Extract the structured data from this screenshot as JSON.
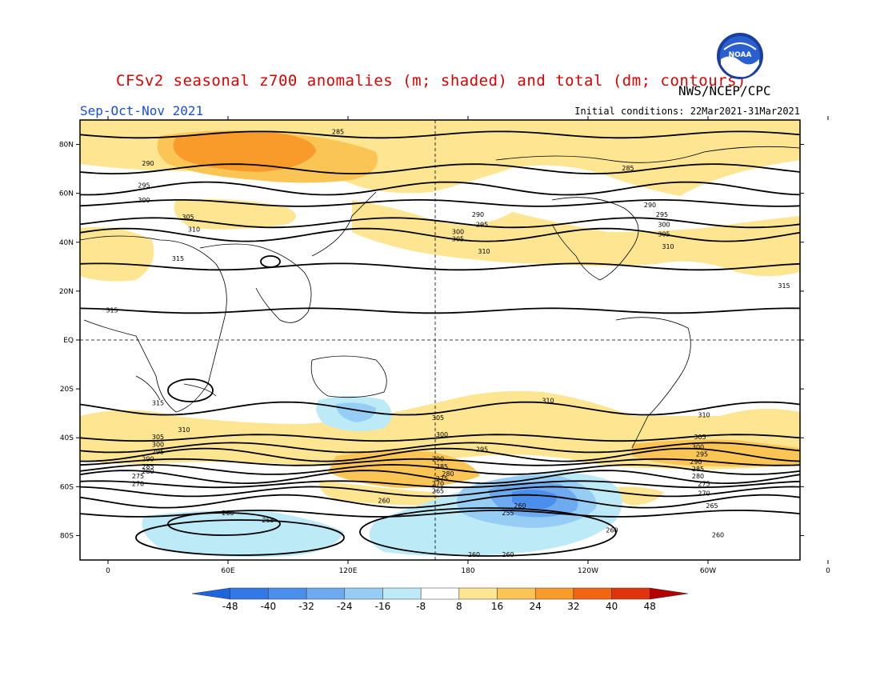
{
  "title": "CFSv2 seasonal z700 anomalies (m; shaded) and total (dm; contours)",
  "agency": "NWS/NCEP/CPC",
  "season": "Sep-Oct-Nov 2021",
  "initial_conditions": "Initial conditions: 22Mar2021-31Mar2021",
  "logo_text": "NOAA",
  "map": {
    "lat_ticks": [
      "80N",
      "60N",
      "40N",
      "20N",
      "EQ",
      "20S",
      "40S",
      "60S",
      "80S"
    ],
    "lon_ticks": [
      "0",
      "60E",
      "120E",
      "180",
      "120W",
      "60W",
      "0"
    ],
    "contours": [
      {
        "label": "285",
        "lat": 84
      },
      {
        "label": "290",
        "lat": 70
      },
      {
        "label": "295",
        "lat": 62
      },
      {
        "label": "300",
        "lat": 56
      },
      {
        "label": "305",
        "lat": 48
      },
      {
        "label": "310",
        "lat": 43
      },
      {
        "label": "315",
        "lat": 30
      },
      {
        "label": "315",
        "lat": 12
      },
      {
        "label": "310",
        "lat": -28
      },
      {
        "label": "305",
        "lat": -40
      },
      {
        "label": "300",
        "lat": -44
      },
      {
        "label": "295",
        "lat": -47
      },
      {
        "label": "290",
        "lat": -50
      },
      {
        "label": "285",
        "lat": -53
      },
      {
        "label": "280",
        "lat": -56
      },
      {
        "label": "275",
        "lat": -59
      },
      {
        "label": "270",
        "lat": -62
      },
      {
        "label": "260",
        "lat": -66
      },
      {
        "label": "255",
        "lat": -71
      }
    ],
    "contour_labels": [
      {
        "text": "285",
        "lon": 115,
        "lat": 85
      },
      {
        "text": "285",
        "lon": -100,
        "lat": 70
      },
      {
        "text": "290",
        "lon": 20,
        "lat": 72
      },
      {
        "text": "295",
        "lon": 18,
        "lat": 63
      },
      {
        "text": "300",
        "lon": 18,
        "lat": 57
      },
      {
        "text": "305",
        "lon": 40,
        "lat": 50
      },
      {
        "text": "310",
        "lon": 43,
        "lat": 45
      },
      {
        "text": "315",
        "lon": 35,
        "lat": 33
      },
      {
        "text": "315",
        "lon": 2,
        "lat": 12
      },
      {
        "text": "290",
        "lon": -175,
        "lat": 51
      },
      {
        "text": "295",
        "lon": -173,
        "lat": 47
      },
      {
        "text": "300",
        "lon": 175,
        "lat": 44
      },
      {
        "text": "305",
        "lon": 175,
        "lat": 41
      },
      {
        "text": "310",
        "lon": -172,
        "lat": 36
      },
      {
        "text": "290",
        "lon": -89,
        "lat": 55
      },
      {
        "text": "295",
        "lon": -83,
        "lat": 51
      },
      {
        "text": "300",
        "lon": -82,
        "lat": 47
      },
      {
        "text": "305",
        "lon": -82,
        "lat": 43
      },
      {
        "text": "310",
        "lon": -80,
        "lat": 38
      },
      {
        "text": "315",
        "lon": -22,
        "lat": 22
      },
      {
        "text": "315",
        "lon": 25,
        "lat": -26
      },
      {
        "text": "310",
        "lon": -140,
        "lat": -25
      },
      {
        "text": "310",
        "lon": -62,
        "lat": -31
      },
      {
        "text": "310",
        "lon": 38,
        "lat": -37
      },
      {
        "text": "305",
        "lon": 165,
        "lat": -32
      },
      {
        "text": "300",
        "lon": 167,
        "lat": -39
      },
      {
        "text": "295",
        "lon": -173,
        "lat": -45
      },
      {
        "text": "290",
        "lon": 165,
        "lat": -49
      },
      {
        "text": "285",
        "lon": 167,
        "lat": -52
      },
      {
        "text": "280",
        "lon": 170,
        "lat": -55
      },
      {
        "text": "275",
        "lon": 167,
        "lat": -57
      },
      {
        "text": "270",
        "lon": 165,
        "lat": -59
      },
      {
        "text": "265",
        "lon": 165,
        "lat": -62
      },
      {
        "text": "260",
        "lon": 138,
        "lat": -66
      },
      {
        "text": "255",
        "lon": -160,
        "lat": -71
      },
      {
        "text": "260",
        "lon": -177,
        "lat": -88
      },
      {
        "text": "260",
        "lon": -154,
        "lat": -68
      },
      {
        "text": "260",
        "lon": -55,
        "lat": -80
      },
      {
        "text": "260",
        "lon": -160,
        "lat": -88
      },
      {
        "text": "260",
        "lon": 60,
        "lat": -71
      },
      {
        "text": "265",
        "lon": 80,
        "lat": -74
      },
      {
        "text": "305",
        "lon": -64,
        "lat": -40
      },
      {
        "text": "300",
        "lon": -65,
        "lat": -44
      },
      {
        "text": "295",
        "lon": -63,
        "lat": -47
      },
      {
        "text": "290",
        "lon": -66,
        "lat": -50
      },
      {
        "text": "285",
        "lon": -65,
        "lat": -53
      },
      {
        "text": "280",
        "lon": -65,
        "lat": -56
      },
      {
        "text": "275",
        "lon": -62,
        "lat": -59
      },
      {
        "text": "270",
        "lon": -62,
        "lat": -63
      },
      {
        "text": "265",
        "lon": -58,
        "lat": -68
      },
      {
        "text": "305",
        "lon": 25,
        "lat": -40
      },
      {
        "text": "300",
        "lon": 25,
        "lat": -43
      },
      {
        "text": "295",
        "lon": 25,
        "lat": -46
      },
      {
        "text": "290",
        "lon": 20,
        "lat": -49
      },
      {
        "text": "285",
        "lon": 20,
        "lat": -52
      },
      {
        "text": "280",
        "lon": 20,
        "lat": -54
      },
      {
        "text": "275",
        "lon": 15,
        "lat": -56
      },
      {
        "text": "270",
        "lon": 15,
        "lat": -59
      },
      {
        "text": "260",
        "lon": -108,
        "lat": -78
      }
    ]
  },
  "colorbar": {
    "labels": [
      "-48",
      "-40",
      "-32",
      "-24",
      "-16",
      "-8",
      "8",
      "16",
      "24",
      "32",
      "40",
      "48"
    ],
    "colors": [
      "#1e64dc",
      "#3278e6",
      "#4b8fec",
      "#6eaaf0",
      "#96cdf5",
      "#bdeaf7",
      "#ffffff",
      "#fde591",
      "#fbc556",
      "#f99b2b",
      "#f06612",
      "#e0330c",
      "#b40000"
    ]
  }
}
